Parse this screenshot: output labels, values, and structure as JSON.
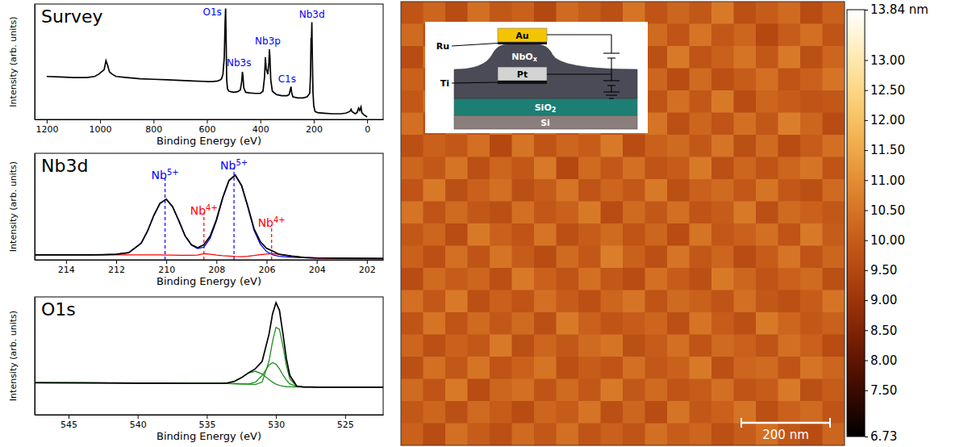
{
  "chart_data": [
    {
      "type": "line",
      "title": "Survey",
      "xlabel": "Binding Energy (eV)",
      "ylabel": "Intensity (arb. units)",
      "xlim": [
        1245,
        -60
      ],
      "xticks": [
        1200,
        1000,
        800,
        600,
        400,
        200,
        0
      ],
      "ylim": [
        0,
        1.02
      ],
      "yticks": [],
      "tick_labels": "x",
      "x": [
        1200,
        1150,
        1100,
        1050,
        1020,
        1005,
        995,
        985,
        978,
        972,
        965,
        955,
        940,
        900,
        850,
        800,
        750,
        700,
        650,
        600,
        580,
        560,
        550,
        545,
        540,
        535,
        532,
        530,
        528,
        526,
        523,
        518,
        510,
        500,
        485,
        475,
        470,
        467,
        465,
        462,
        455,
        440,
        420,
        400,
        390,
        384,
        381,
        378,
        372,
        368,
        366,
        364,
        361,
        355,
        340,
        320,
        300,
        292,
        287,
        285,
        283,
        278,
        260,
        240,
        225,
        215,
        212,
        210,
        208.5,
        207,
        205.5,
        203,
        200,
        195,
        185,
        160,
        130,
        100,
        80,
        65,
        60,
        57,
        45,
        38,
        32,
        28,
        23,
        20,
        12,
        5,
        0
      ],
      "series": [
        {
          "color": "black",
          "values": [
            0.38,
            0.375,
            0.37,
            0.37,
            0.38,
            0.4,
            0.42,
            0.44,
            0.52,
            0.48,
            0.42,
            0.4,
            0.38,
            0.37,
            0.36,
            0.355,
            0.35,
            0.345,
            0.34,
            0.335,
            0.335,
            0.34,
            0.35,
            0.36,
            0.4,
            0.55,
            0.85,
            0.98,
            0.7,
            0.35,
            0.27,
            0.25,
            0.245,
            0.24,
            0.245,
            0.26,
            0.33,
            0.42,
            0.38,
            0.28,
            0.24,
            0.235,
            0.23,
            0.23,
            0.25,
            0.38,
            0.55,
            0.45,
            0.4,
            0.5,
            0.62,
            0.55,
            0.35,
            0.25,
            0.22,
            0.21,
            0.21,
            0.22,
            0.27,
            0.29,
            0.24,
            0.2,
            0.19,
            0.19,
            0.2,
            0.23,
            0.4,
            0.72,
            0.7,
            0.86,
            0.6,
            0.25,
            0.12,
            0.07,
            0.06,
            0.055,
            0.05,
            0.05,
            0.055,
            0.07,
            0.09,
            0.07,
            0.05,
            0.06,
            0.1,
            0.08,
            0.11,
            0.06,
            0.04,
            0.03,
            0.02
          ]
        }
      ],
      "annotations": [
        {
          "text": "O1s",
          "x": 580,
          "y": 0.92,
          "color": "blue"
        },
        {
          "text": "Nb3s",
          "x": 480,
          "y": 0.47,
          "color": "blue"
        },
        {
          "text": "Nb3p",
          "x": 372,
          "y": 0.66,
          "color": "blue"
        },
        {
          "text": "C1s",
          "x": 300,
          "y": 0.33,
          "color": "blue"
        },
        {
          "text": "Nb3d",
          "x": 207,
          "y": 0.9,
          "color": "blue"
        }
      ]
    },
    {
      "type": "line",
      "title": "Nb3d",
      "xlabel": "Binding Energy (eV)",
      "ylabel": "Intensity (arb. units)",
      "xlim": [
        215.25,
        201.35
      ],
      "xticks": [
        214,
        212,
        210,
        208,
        206,
        204,
        202
      ],
      "ylim": [
        0,
        1.3
      ],
      "yticks": [],
      "tick_labels": "x",
      "x": [
        215.3,
        214,
        213,
        212.5,
        212,
        211.5,
        211,
        210.75,
        210.5,
        210.25,
        210,
        209.75,
        209.5,
        209.25,
        209,
        208.75,
        208.5,
        208.25,
        208,
        207.75,
        207.5,
        207.25,
        207,
        206.75,
        206.5,
        206.25,
        206,
        205.75,
        205.5,
        205,
        204.5,
        204,
        203,
        201.3
      ],
      "series": [
        {
          "color": "blue",
          "values": [
            0.06,
            0.06,
            0.06,
            0.063,
            0.067,
            0.087,
            0.203,
            0.35,
            0.54,
            0.69,
            0.738,
            0.645,
            0.477,
            0.29,
            0.18,
            0.138,
            0.155,
            0.265,
            0.475,
            0.75,
            0.965,
            1.03,
            0.905,
            0.645,
            0.36,
            0.19,
            0.1,
            0.06,
            0.043,
            0.03,
            0.025,
            0.022,
            0.018,
            0.015
          ]
        },
        {
          "color": "red",
          "values": [
            0.06,
            0.06,
            0.06,
            0.06,
            0.06,
            0.06,
            0.06,
            0.06,
            0.06,
            0.06,
            0.058,
            0.057,
            0.055,
            0.055,
            0.055,
            0.058,
            0.075,
            0.068,
            0.058,
            0.05,
            0.045,
            0.04,
            0.039,
            0.044,
            0.052,
            0.062,
            0.07,
            0.075,
            0.067,
            0.045,
            0.028,
            0.022,
            0.018,
            0.015
          ]
        },
        {
          "color": "black",
          "values": [
            0.06,
            0.06,
            0.06,
            0.063,
            0.067,
            0.087,
            0.203,
            0.35,
            0.54,
            0.69,
            0.74,
            0.65,
            0.477,
            0.292,
            0.185,
            0.148,
            0.185,
            0.29,
            0.493,
            0.76,
            0.97,
            1.035,
            0.909,
            0.654,
            0.379,
            0.222,
            0.14,
            0.105,
            0.067,
            0.045,
            0.028,
            0.022,
            0.018,
            0.015
          ]
        }
      ],
      "annotations": [
        {
          "text": "Nb",
          "superscript": "5+",
          "x": 210.05,
          "y": 0.98,
          "color": "blue",
          "line_style": "dashed"
        },
        {
          "text": "Nb",
          "superscript": "4+",
          "x": 208.5,
          "y": 0.55,
          "color": "red",
          "line_style": "dashed"
        },
        {
          "text": "Nb",
          "superscript": "5+",
          "x": 207.3,
          "y": 1.1,
          "color": "blue",
          "line_style": "dashed"
        },
        {
          "text": "Nb",
          "superscript": "4+",
          "x": 205.8,
          "y": 0.4,
          "color": "red",
          "line_style": "dashed"
        }
      ]
    },
    {
      "type": "line",
      "title": "O1s",
      "xlabel": "Binding Energy (eV)",
      "ylabel": "Intensity (arb. units)",
      "xlim": [
        547.45,
        522.25
      ],
      "xticks": [
        545,
        540,
        535,
        530,
        525
      ],
      "ylim": [
        0,
        1.05
      ],
      "yticks": [],
      "tick_labels": "x",
      "x": [
        547.5,
        544,
        542,
        540,
        538,
        536,
        535,
        534,
        533.5,
        533,
        532.5,
        532,
        531.5,
        531,
        530.5,
        530.25,
        530,
        529.75,
        529.5,
        529.25,
        529,
        528.5,
        528,
        527.5,
        527,
        526,
        525,
        524,
        523,
        522
      ],
      "series": [
        {
          "color": "#1f8f1f",
          "values": [
            0.285,
            0.284,
            0.283,
            0.282,
            0.281,
            0.28,
            0.28,
            0.279,
            0.278,
            0.277,
            0.275,
            0.272,
            0.269,
            0.291,
            0.48,
            0.654,
            0.779,
            0.761,
            0.613,
            0.438,
            0.321,
            0.251,
            0.247,
            0.247,
            0.246,
            0.246,
            0.246,
            0.245,
            0.245,
            0.245
          ]
        },
        {
          "color": "#1f8f1f",
          "values": [
            0.285,
            0.284,
            0.283,
            0.282,
            0.281,
            0.28,
            0.28,
            0.279,
            0.278,
            0.277,
            0.275,
            0.274,
            0.288,
            0.35,
            0.443,
            0.464,
            0.451,
            0.409,
            0.355,
            0.308,
            0.276,
            0.251,
            0.247,
            0.247,
            0.246,
            0.246,
            0.246,
            0.245,
            0.245,
            0.245
          ]
        },
        {
          "color": "#1f8f1f",
          "values": [
            0.285,
            0.284,
            0.283,
            0.282,
            0.281,
            0.28,
            0.28,
            0.28,
            0.283,
            0.298,
            0.33,
            0.371,
            0.388,
            0.363,
            0.313,
            0.29,
            0.273,
            0.261,
            0.254,
            0.25,
            0.249,
            0.247,
            0.247,
            0.247,
            0.246,
            0.246,
            0.246,
            0.245,
            0.245,
            0.245
          ]
        },
        {
          "color": "black",
          "values": [
            0.285,
            0.284,
            0.283,
            0.282,
            0.281,
            0.28,
            0.28,
            0.28,
            0.283,
            0.298,
            0.33,
            0.373,
            0.409,
            0.476,
            0.72,
            0.898,
            0.999,
            0.931,
            0.724,
            0.5,
            0.35,
            0.255,
            0.247,
            0.247,
            0.246,
            0.246,
            0.246,
            0.245,
            0.245,
            0.245
          ]
        }
      ]
    },
    {
      "type": "heatmap",
      "xlim": [
        0,
        1000
      ],
      "ylim": [
        0,
        1000
      ],
      "tick_labels": false,
      "values": [
        [
          9.8,
          10.2,
          9.6,
          10.4,
          9.9,
          10.1,
          9.5,
          10.3,
          10.0,
          9.7,
          10.5,
          9.8,
          10.2,
          9.9,
          10.6,
          9.7,
          10.0,
          10.3,
          9.6,
          10.1
        ],
        [
          10.3,
          9.7,
          10.1,
          9.5,
          10.6,
          9.8,
          10.2,
          9.9,
          10.7,
          10.1,
          9.6,
          10.3,
          9.8,
          10.5,
          9.9,
          10.2,
          9.5,
          10.0,
          10.4,
          9.8
        ],
        [
          9.6,
          10.5,
          9.9,
          10.2,
          9.7,
          10.8,
          10.0,
          9.6,
          10.2,
          9.9,
          10.4,
          9.7,
          10.6,
          9.8,
          10.1,
          10.5,
          9.9,
          10.6,
          9.7,
          10.2
        ],
        [
          10.1,
          9.8,
          10.7,
          9.9,
          10.3,
          9.6,
          10.4,
          10.1,
          9.5,
          10.6,
          9.9,
          10.2,
          9.6,
          10.3,
          9.7,
          10.0,
          10.4,
          9.8,
          10.1,
          10.5
        ],
        [
          9.9,
          10.4,
          9.6,
          10.5,
          10.0,
          10.2,
          9.7,
          10.6,
          9.9,
          10.2,
          10.7,
          9.8,
          10.4,
          9.9,
          10.6,
          9.6,
          10.2,
          10.0,
          9.8,
          9.9
        ],
        [
          10.4,
          9.7,
          10.2,
          9.8,
          10.6,
          9.9,
          10.3,
          9.8,
          10.4,
          9.7,
          10.0,
          10.5,
          9.7,
          10.2,
          9.8,
          10.4,
          9.9,
          10.7,
          10.2,
          9.6
        ],
        [
          9.7,
          10.1,
          9.9,
          10.4,
          9.5,
          10.5,
          9.8,
          10.2,
          10.0,
          10.6,
          9.6,
          10.1,
          10.3,
          9.9,
          10.5,
          9.7,
          10.3,
          9.6,
          10.0,
          10.4
        ],
        [
          10.2,
          9.9,
          10.5,
          9.7,
          10.2,
          9.9,
          10.6,
          9.5,
          10.3,
          9.9,
          10.4,
          9.8,
          10.0,
          10.6,
          9.7,
          10.2,
          9.8,
          10.2,
          10.5,
          9.8
        ],
        [
          9.8,
          10.6,
          9.7,
          10.1,
          10.4,
          9.7,
          10.0,
          10.5,
          9.8,
          10.2,
          9.9,
          10.6,
          9.7,
          10.1,
          10.3,
          9.9,
          10.5,
          9.9,
          9.7,
          10.3
        ],
        [
          10.5,
          9.8,
          10.3,
          9.9,
          9.7,
          10.4,
          9.9,
          10.1,
          10.6,
          9.6,
          10.3,
          9.9,
          10.4,
          9.8,
          10.0,
          10.6,
          9.7,
          10.3,
          10.1,
          9.9
        ],
        [
          9.9,
          10.2,
          9.6,
          10.6,
          10.1,
          9.8,
          10.5,
          9.7,
          10.0,
          10.3,
          9.8,
          10.2,
          9.6,
          10.5,
          9.9,
          10.1,
          10.4,
          9.8,
          10.6,
          10.0
        ],
        [
          10.1,
          9.7,
          10.4,
          9.8,
          10.5,
          10.0,
          9.6,
          10.3,
          9.9,
          10.7,
          10.1,
          9.7,
          10.5,
          9.9,
          10.2,
          9.6,
          10.0,
          10.5,
          9.8,
          10.2
        ],
        [
          9.6,
          10.3,
          10.0,
          10.2,
          9.7,
          10.6,
          10.1,
          9.8,
          10.4,
          9.9,
          9.6,
          10.4,
          10.0,
          9.7,
          10.6,
          10.2,
          9.8,
          10.1,
          10.3,
          9.7
        ],
        [
          10.4,
          9.9,
          10.6,
          9.7,
          10.1,
          9.8,
          10.4,
          10.0,
          9.7,
          10.2,
          10.5,
          9.8,
          10.3,
          10.1,
          9.8,
          10.4,
          9.9,
          9.7,
          10.0,
          10.5
        ],
        [
          9.8,
          10.5,
          9.8,
          10.3,
          9.9,
          10.3,
          9.7,
          10.6,
          10.1,
          9.8,
          10.0,
          10.2,
          9.7,
          10.5,
          10.0,
          9.7,
          10.6,
          10.2,
          9.9,
          10.1
        ],
        [
          10.2,
          9.7,
          10.1,
          9.9,
          10.6,
          9.7,
          10.2,
          9.9,
          10.3,
          10.5,
          9.7,
          10.0,
          10.4,
          9.8,
          10.3,
          10.1,
          9.8,
          10.4,
          10.1,
          9.6
        ],
        [
          9.7,
          10.4,
          9.9,
          10.5,
          9.8,
          10.1,
          10.5,
          9.7,
          10.0,
          9.8,
          10.4,
          9.9,
          10.1,
          10.6,
          9.7,
          10.2,
          10.3,
          9.8,
          10.5,
          10.2
        ],
        [
          10.3,
          9.8,
          10.6,
          9.6,
          10.2,
          10.4,
          9.8,
          10.3,
          9.9,
          10.6,
          9.9,
          10.3,
          9.8,
          10.0,
          10.4,
          9.8,
          10.0,
          10.6,
          9.7,
          10.0
        ],
        [
          9.9,
          10.2,
          9.7,
          10.3,
          10.0,
          9.6,
          10.2,
          10.0,
          10.5,
          9.7,
          10.2,
          9.6,
          10.5,
          9.9,
          10.1,
          10.5,
          9.7,
          10.1,
          10.3,
          9.8
        ],
        [
          10.1,
          9.6,
          10.4,
          10.0,
          9.7,
          10.3,
          9.9,
          10.4,
          9.8,
          10.1,
          9.8,
          10.4,
          10.0,
          10.2,
          9.7,
          10.0,
          10.4,
          9.9,
          9.6,
          10.2
        ]
      ],
      "colorbar": {
        "range": [
          6.73,
          13.84
        ],
        "ticks": [
          {
            "value": 13.84,
            "label": "13.84 nm"
          },
          {
            "value": 13,
            "label": "13.00"
          },
          {
            "value": 12.5,
            "label": "12.50"
          },
          {
            "value": 12,
            "label": "12.00"
          },
          {
            "value": 11.5,
            "label": "11.50"
          },
          {
            "value": 11,
            "label": "11.00"
          },
          {
            "value": 10.5,
            "label": "10.50"
          },
          {
            "value": 10,
            "label": "10.00"
          },
          {
            "value": 9.5,
            "label": "9.50"
          },
          {
            "value": 9,
            "label": "9.00"
          },
          {
            "value": 8.5,
            "label": "8.50"
          },
          {
            "value": 8,
            "label": "8.00"
          },
          {
            "value": 7.5,
            "label": "7.50"
          },
          6.73
        ]
      },
      "scale_bar": {
        "value": 200,
        "label": "200 nm"
      },
      "inset": {
        "layers": [
          {
            "label": "Au"
          },
          {
            "label": "Ru"
          },
          {
            "label": "NbO",
            "subscript": "x"
          },
          {
            "label": "Pt"
          },
          {
            "label": "Ti"
          },
          {
            "label": "SiO",
            "subscript": "2"
          },
          {
            "label": "Si"
          }
        ]
      }
    }
  ]
}
